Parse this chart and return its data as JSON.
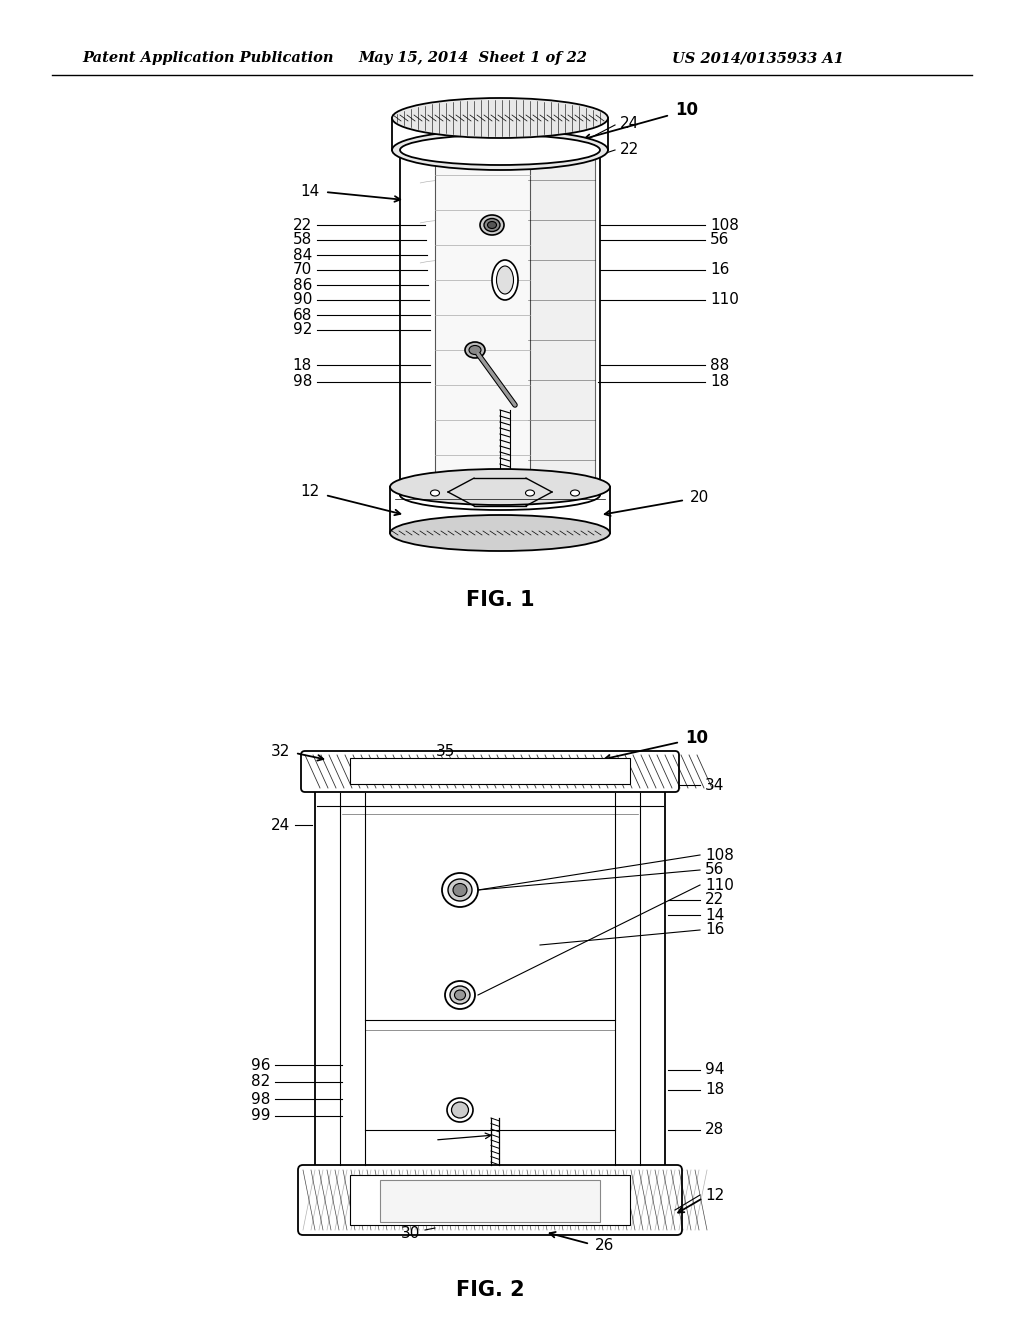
{
  "background_color": "#ffffff",
  "header_text": "Patent Application Publication",
  "header_date": "May 15, 2014  Sheet 1 of 22",
  "header_patent": "US 2014/0135933 A1",
  "fig1_title": "FIG. 1",
  "fig2_title": "FIG. 2",
  "lfs": 11
}
